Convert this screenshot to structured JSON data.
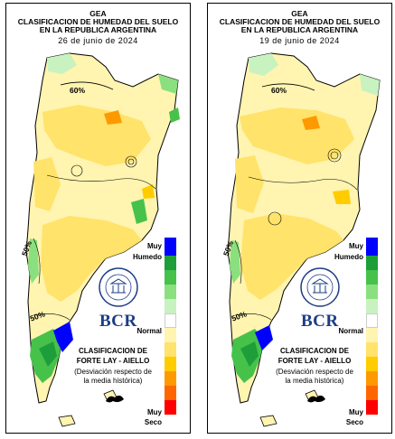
{
  "panels": [
    {
      "header_line1": "GEA",
      "header_line2": "CLASIFICACION DE HUMEDAD DEL SUELO",
      "header_line3": "EN LA REPUBLICA ARGENTINA",
      "date": "26 de junio de 2024",
      "isoline_labels": [
        "60%",
        "50%",
        "50%"
      ],
      "legend_top_line1": "Muy",
      "legend_top_line2": "Humedo",
      "legend_mid": "Normal",
      "legend_bottom_line1": "Muy",
      "legend_bottom_line2": "Seco",
      "bcr_logo": "BCR",
      "seal_text": "BOLSA DE COMERCIO DE ROSARIO",
      "classification_line1": "CLASIFICACION DE",
      "classification_line2": "FORTE LAY - AIELLO",
      "classification_line3": "(Desviación respecto de",
      "classification_line4": "la media histórica)"
    },
    {
      "header_line1": "GEA",
      "header_line2": "CLASIFICACION DE HUMEDAD DEL SUELO",
      "header_line3": "EN LA REPUBLICA ARGENTINA",
      "date": "19 de junio de 2024",
      "isoline_labels": [
        "60%",
        "50%",
        "50%"
      ],
      "legend_top_line1": "Muy",
      "legend_top_line2": "Humedo",
      "legend_mid": "Normal",
      "legend_bottom_line1": "Muy",
      "legend_bottom_line2": "Seco",
      "bcr_logo": "BCR",
      "seal_text": "BOLSA DE COMERCIO DE ROSARIO",
      "classification_line1": "CLASIFICACION DE",
      "classification_line2": "FORTE LAY - AIELLO",
      "classification_line3": "(Desviación respecto de",
      "classification_line4": "la media histórica)"
    }
  ],
  "legend_colors": [
    "#0000ff",
    "#1e9e3a",
    "#46c24a",
    "#8ae07e",
    "#c8f2c0",
    "#ffffff",
    "#fff4b0",
    "#ffe36a",
    "#ffcc00",
    "#ff9900",
    "#ff6600",
    "#ff0000"
  ],
  "colors": {
    "very_wet": "#0000ff",
    "wet_dark": "#1e9e3a",
    "wet": "#46c24a",
    "wet_light": "#8ae07e",
    "normal_wet": "#c8f2c0",
    "normal": "#ffffff",
    "dry_light": "#fff4b0",
    "dry": "#ffe36a",
    "dry_mid": "#ffcc00",
    "dry_strong": "#ff9900",
    "very_dry": "#ff0000",
    "bcr_blue": "#1b3d86"
  }
}
